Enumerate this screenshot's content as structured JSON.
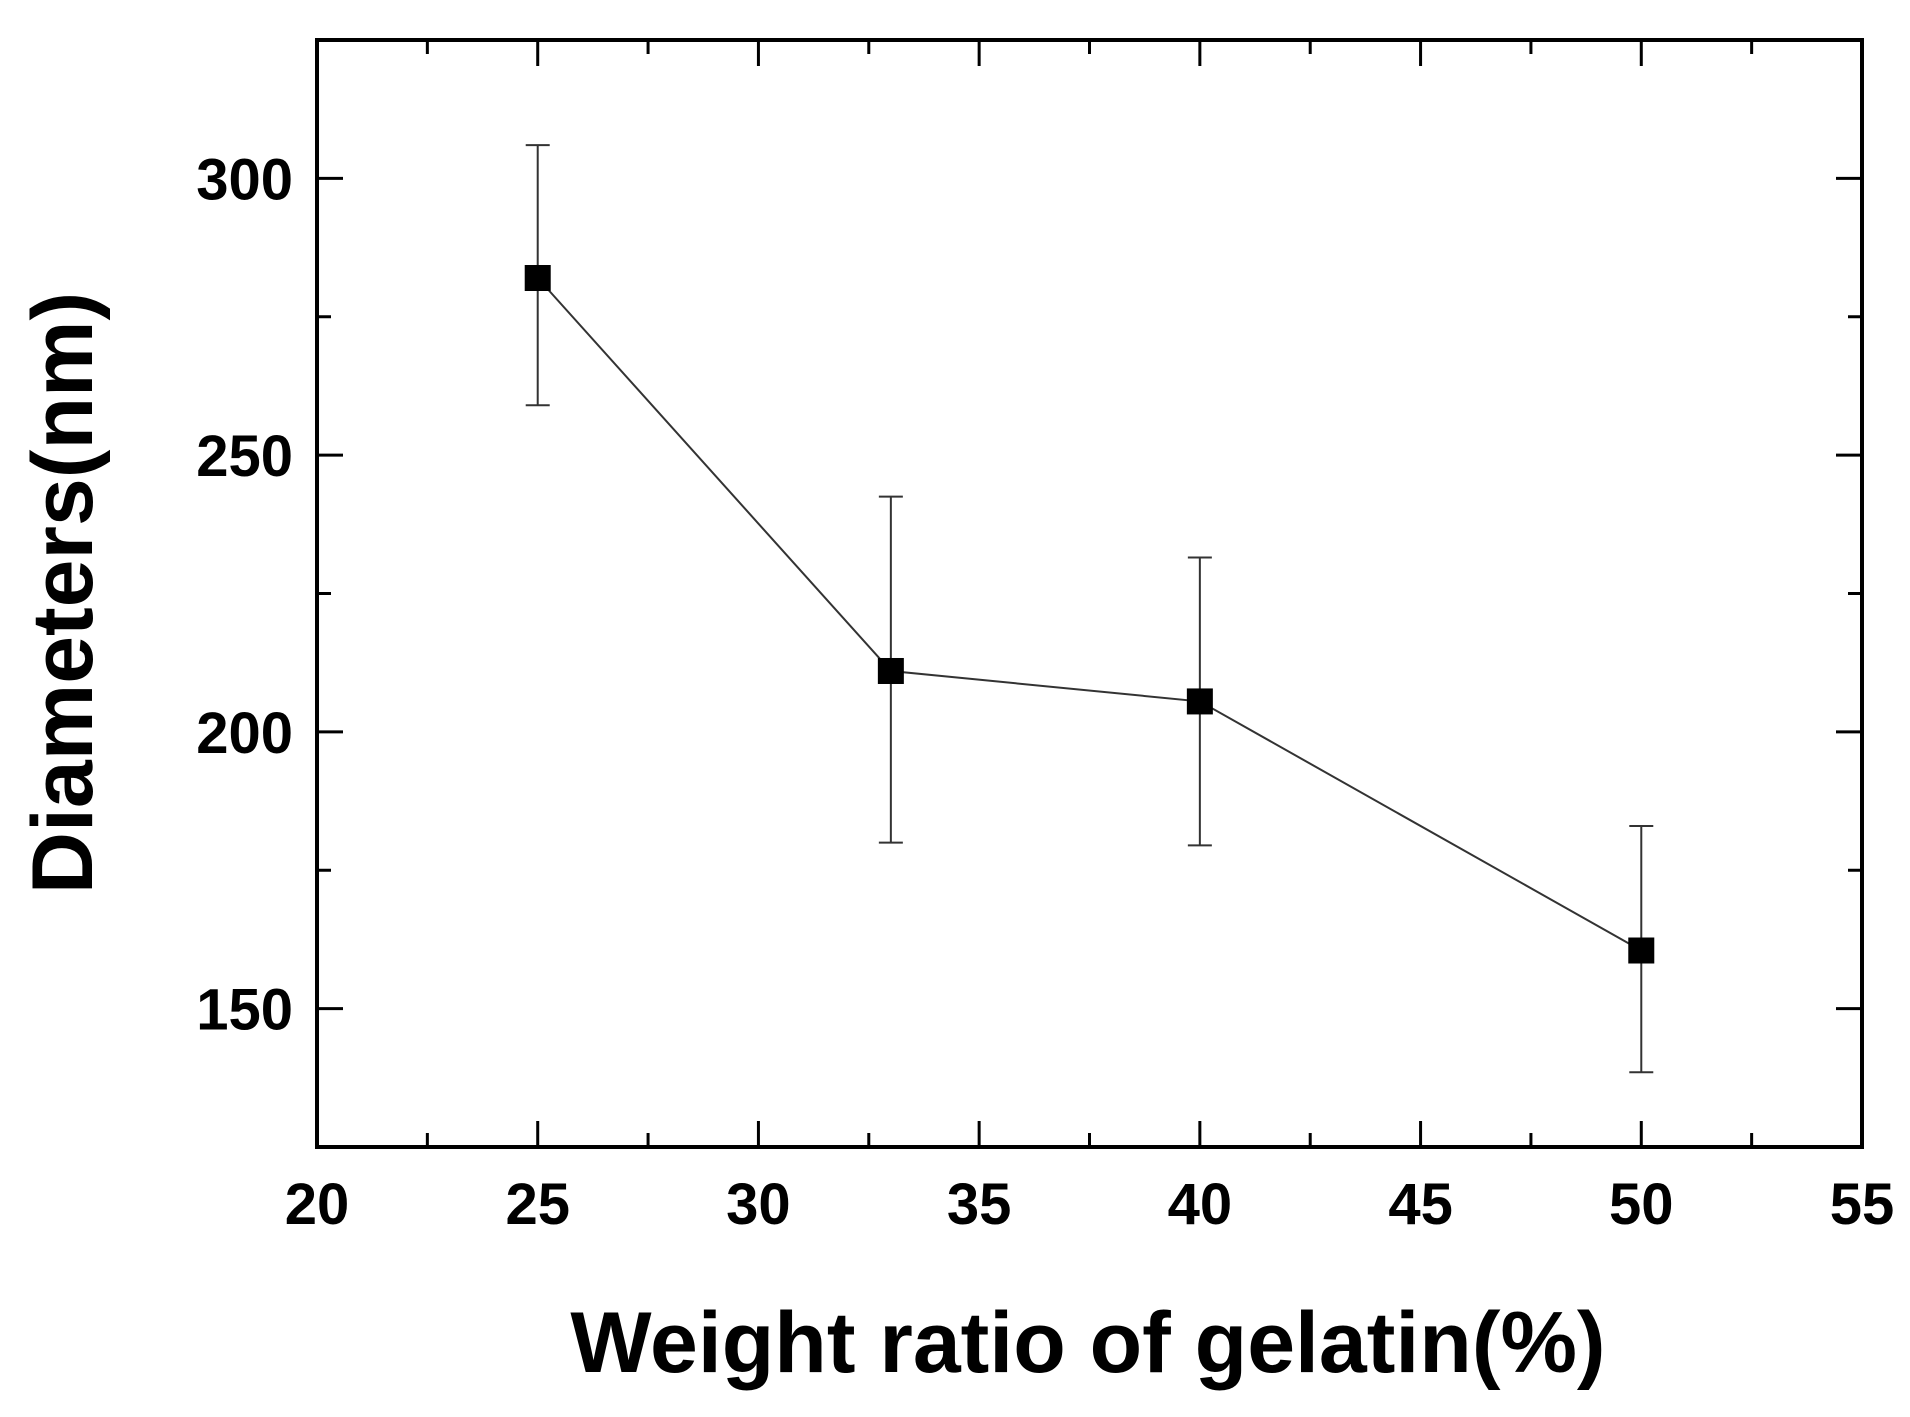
{
  "chart_data": {
    "type": "line",
    "title": "",
    "xlabel": "Weight ratio of gelatin(%)",
    "ylabel": "Diameters(nm)",
    "xlim": [
      20,
      55
    ],
    "ylim": [
      125,
      325
    ],
    "x_ticks": [
      20,
      25,
      30,
      35,
      40,
      45,
      50,
      55
    ],
    "x_tick_labels": [
      "20",
      "25",
      "30",
      "35",
      "40",
      "45",
      "50",
      "55"
    ],
    "x_minor_step": 2.5,
    "y_ticks": [
      150,
      200,
      250,
      300
    ],
    "y_tick_labels": [
      "150",
      "200",
      "250",
      "300"
    ],
    "y_minor_step": 25,
    "grid": false,
    "series": [
      {
        "name": "Diameters",
        "marker": "square",
        "color": "#000000",
        "line_color": "#333333",
        "x": [
          25,
          33,
          40,
          50
        ],
        "y": [
          282,
          211,
          205.5,
          160.5
        ],
        "error_low": [
          259,
          180,
          179.5,
          138.5
        ],
        "error_high": [
          306,
          242.5,
          231.5,
          183
        ]
      }
    ]
  }
}
